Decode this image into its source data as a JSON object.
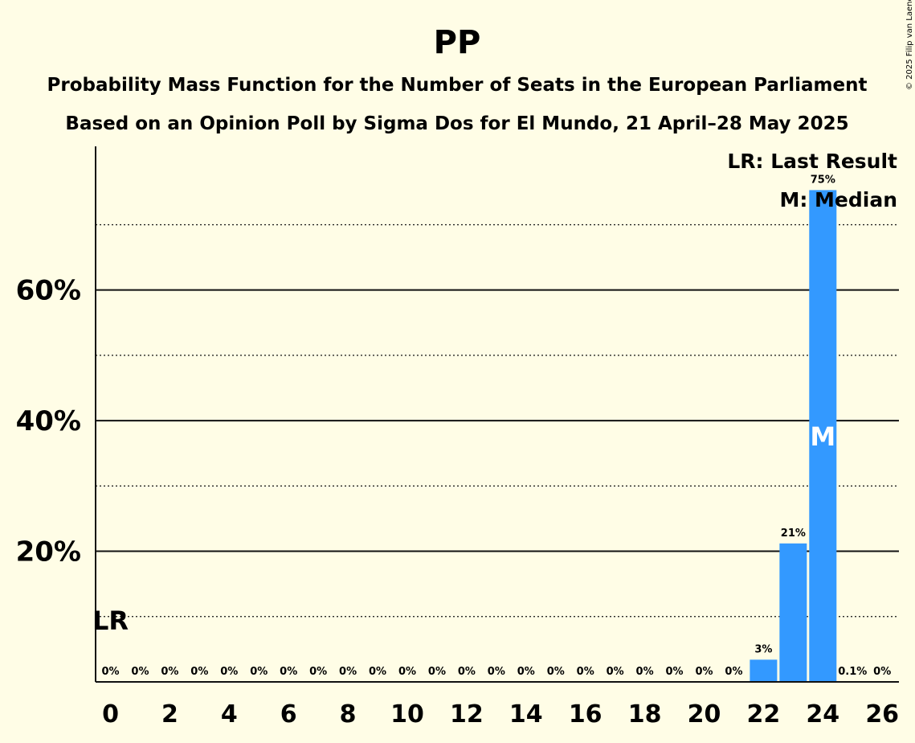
{
  "copyright": "© 2025 Filip van Laenen",
  "chart_data": {
    "type": "bar",
    "title": "PP",
    "subtitle_lines": [
      "Probability Mass Function for the Number of Seats in the European Parliament",
      "Based on an Opinion Poll by Sigma Dos for El Mundo, 21 April–28 May 2025"
    ],
    "bar_color": "#3399ff",
    "categories": [
      0,
      1,
      2,
      3,
      4,
      5,
      6,
      7,
      8,
      9,
      10,
      11,
      12,
      13,
      14,
      15,
      16,
      17,
      18,
      19,
      20,
      21,
      22,
      23,
      24,
      25,
      26
    ],
    "values": [
      0,
      0,
      0,
      0,
      0,
      0,
      0,
      0,
      0,
      0,
      0,
      0,
      0,
      0,
      0,
      0,
      0,
      0,
      0,
      0,
      0,
      0,
      3.4,
      21.2,
      75.3,
      0.1,
      0
    ],
    "value_labels": [
      "0%",
      "0%",
      "0%",
      "0%",
      "0%",
      "0%",
      "0%",
      "0%",
      "0%",
      "0%",
      "0%",
      "0%",
      "0%",
      "0%",
      "0%",
      "0%",
      "0%",
      "0%",
      "0%",
      "0%",
      "0%",
      "0%",
      "3%",
      "21%",
      "75%",
      "0.1%",
      "0%"
    ],
    "x_tick_labels": [
      "0",
      "2",
      "4",
      "6",
      "8",
      "10",
      "12",
      "14",
      "16",
      "18",
      "20",
      "22",
      "24",
      "26"
    ],
    "x_tick_values": [
      0,
      2,
      4,
      6,
      8,
      10,
      12,
      14,
      16,
      18,
      20,
      22,
      24,
      26
    ],
    "y_tick_labels": [
      "20%",
      "40%",
      "60%"
    ],
    "y_tick_values": [
      20,
      40,
      60
    ],
    "y_minor_gridlines": [
      10,
      30,
      50,
      70
    ],
    "ylim": [
      0,
      82
    ],
    "last_result_seat": 0,
    "last_result_label": "LR",
    "median_seat": 24,
    "median_label": "M",
    "legend": [
      "LR: Last Result",
      "M: Median"
    ],
    "legend_position": "top-right",
    "grid": true
  }
}
